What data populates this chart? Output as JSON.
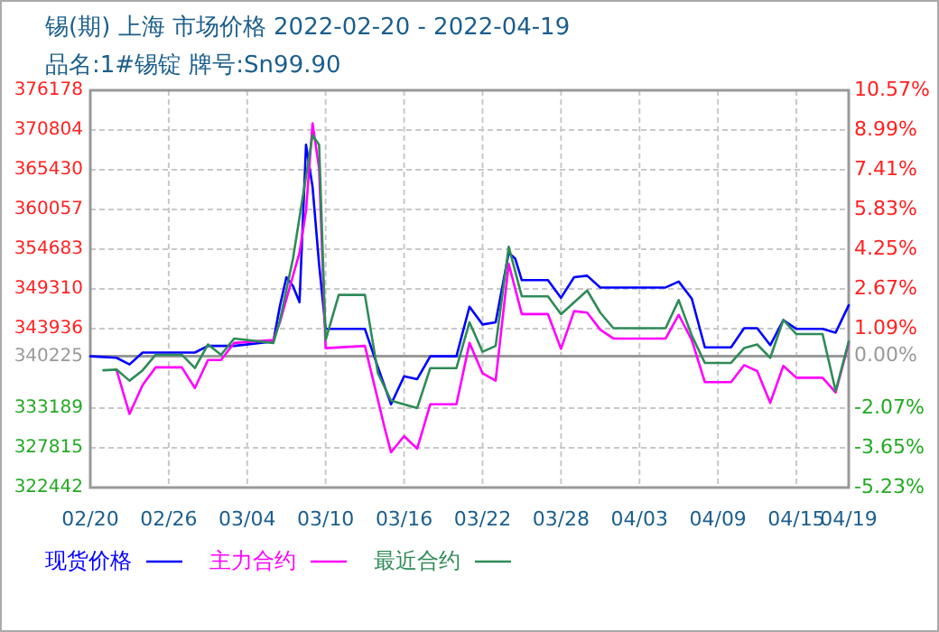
{
  "chart_data": {
    "type": "line",
    "title": "锡(期) 上海 市场价格 2022-02-20 - 2022-04-19",
    "subtitle": "品名:1#锡锭 牌号:Sn99.90",
    "xlim": [
      "2022-02-20",
      "2022-04-19"
    ],
    "xticks": [
      {
        "value": "2022-02-20",
        "label": "02/20"
      },
      {
        "value": "2022-02-26",
        "label": "02/26"
      },
      {
        "value": "2022-03-04",
        "label": "03/04"
      },
      {
        "value": "2022-03-10",
        "label": "03/10"
      },
      {
        "value": "2022-03-16",
        "label": "03/16"
      },
      {
        "value": "2022-03-22",
        "label": "03/22"
      },
      {
        "value": "2022-03-28",
        "label": "03/28"
      },
      {
        "value": "2022-04-03",
        "label": "04/03"
      },
      {
        "value": "2022-04-09",
        "label": "04/09"
      },
      {
        "value": "2022-04-15",
        "label": "04/15"
      },
      {
        "value": "2022-04-19",
        "label": "04/19"
      }
    ],
    "ylim": [
      322442,
      376178
    ],
    "yticks": [
      322442,
      327815,
      333189,
      340225,
      343936,
      349310,
      354683,
      360057,
      365430,
      370804,
      376178
    ],
    "y2lim": [
      -5.23,
      10.57
    ],
    "y2ticks": [
      {
        "value": -5.23,
        "label": "-5.23%"
      },
      {
        "value": -3.65,
        "label": "-3.65%"
      },
      {
        "value": -2.07,
        "label": "-2.07%"
      },
      {
        "value": 0,
        "label": "0.00%"
      },
      {
        "value": 1.09,
        "label": "1.09%"
      },
      {
        "value": 2.67,
        "label": "2.67%"
      },
      {
        "value": 4.25,
        "label": "4.25%"
      },
      {
        "value": 5.83,
        "label": "5.83%"
      },
      {
        "value": 7.41,
        "label": "7.41%"
      },
      {
        "value": 8.99,
        "label": "8.99%"
      },
      {
        "value": 10.57,
        "label": "10.57%"
      }
    ],
    "ref_lines": [
      {
        "axis": "y",
        "value": 340225,
        "color": "#999999"
      }
    ],
    "grid": true,
    "legend": "bottom",
    "line_style": "solid",
    "series": [
      {
        "name": "现货价格",
        "color": "#0000ff",
        "x": [
          "2022-02-20",
          "2022-02-22",
          "2022-02-23",
          "2022-02-24",
          "2022-02-28",
          "2022-03-01",
          "2022-03-03",
          "2022-03-06",
          "2022-03-06T12:00",
          "2022-03-07",
          "2022-03-07T12:00",
          "2022-03-08",
          "2022-03-08T12:00",
          "2022-03-09",
          "2022-03-09T12:00",
          "2022-03-10",
          "2022-03-13",
          "2022-03-14",
          "2022-03-15",
          "2022-03-16",
          "2022-03-17",
          "2022-03-18",
          "2022-03-20",
          "2022-03-21",
          "2022-03-22",
          "2022-03-23",
          "2022-03-24",
          "2022-03-24T12:00",
          "2022-03-25",
          "2022-03-27",
          "2022-03-28",
          "2022-03-29",
          "2022-03-30",
          "2022-03-31",
          "2022-04-05",
          "2022-04-06",
          "2022-04-07",
          "2022-04-08",
          "2022-04-10",
          "2022-04-11",
          "2022-04-12",
          "2022-04-13",
          "2022-04-14",
          "2022-04-15",
          "2022-04-17",
          "2022-04-18",
          "2022-04-19"
        ],
        "values": [
          340200,
          340000,
          339100,
          340700,
          340700,
          341600,
          341600,
          342200,
          347000,
          350900,
          349700,
          347500,
          368800,
          363100,
          352600,
          343900,
          343900,
          338700,
          333700,
          337500,
          337100,
          340200,
          340200,
          346900,
          344500,
          344800,
          354200,
          353400,
          350500,
          350500,
          348100,
          350900,
          351100,
          349500,
          349500,
          350300,
          348000,
          341400,
          341400,
          344000,
          344000,
          341700,
          345100,
          343900,
          343900,
          343400,
          347100
        ]
      },
      {
        "name": "主力合约",
        "color": "#ff00ff",
        "x": [
          "2022-02-22",
          "2022-02-23",
          "2022-02-24",
          "2022-02-25",
          "2022-02-27",
          "2022-02-28",
          "2022-03-01",
          "2022-03-02",
          "2022-03-03",
          "2022-03-06",
          "2022-03-06T12:00",
          "2022-03-08",
          "2022-03-08T12:00",
          "2022-03-09",
          "2022-03-09T12:00",
          "2022-03-10",
          "2022-03-13",
          "2022-03-14T12:00",
          "2022-03-15",
          "2022-03-16",
          "2022-03-17",
          "2022-03-18",
          "2022-03-20",
          "2022-03-21",
          "2022-03-22",
          "2022-03-23",
          "2022-03-24",
          "2022-03-25",
          "2022-03-27",
          "2022-03-28",
          "2022-03-29",
          "2022-03-30",
          "2022-03-31",
          "2022-04-01",
          "2022-04-05",
          "2022-04-06",
          "2022-04-07",
          "2022-04-08",
          "2022-04-10",
          "2022-04-11",
          "2022-04-12",
          "2022-04-13",
          "2022-04-14",
          "2022-04-15",
          "2022-04-17",
          "2022-04-18",
          "2022-04-19"
        ],
        "values": [
          338400,
          332400,
          336300,
          338700,
          338700,
          335900,
          339700,
          339700,
          342000,
          342400,
          344800,
          354200,
          359900,
          371700,
          365600,
          341300,
          341600,
          330600,
          327200,
          329400,
          327700,
          333700,
          333700,
          342000,
          337900,
          336900,
          352700,
          345900,
          345900,
          341200,
          346300,
          346100,
          343800,
          342600,
          342600,
          345800,
          342400,
          336700,
          336700,
          339000,
          338200,
          333900,
          338900,
          337300,
          337300,
          335300,
          342000
        ]
      },
      {
        "name": "最近合约",
        "color": "#2e8b57",
        "x": [
          "2022-02-21",
          "2022-02-22",
          "2022-02-23",
          "2022-02-24",
          "2022-02-25",
          "2022-02-27",
          "2022-02-28",
          "2022-03-01",
          "2022-03-02",
          "2022-03-03",
          "2022-03-06",
          "2022-03-06T12:00",
          "2022-03-07T12:00",
          "2022-03-09",
          "2022-03-09T12:00",
          "2022-03-10",
          "2022-03-11",
          "2022-03-13",
          "2022-03-14",
          "2022-03-15",
          "2022-03-17",
          "2022-03-18",
          "2022-03-20",
          "2022-03-21",
          "2022-03-22",
          "2022-03-23",
          "2022-03-24",
          "2022-03-25",
          "2022-03-27",
          "2022-03-28",
          "2022-03-30",
          "2022-03-31",
          "2022-04-01",
          "2022-04-05",
          "2022-04-06",
          "2022-04-07",
          "2022-04-08",
          "2022-04-10",
          "2022-04-11",
          "2022-04-12",
          "2022-04-13",
          "2022-04-14",
          "2022-04-15",
          "2022-04-17",
          "2022-04-18",
          "2022-04-19"
        ],
        "values": [
          338300,
          338400,
          336900,
          338300,
          340400,
          340400,
          338600,
          341800,
          340400,
          342600,
          342000,
          345000,
          353400,
          370100,
          368800,
          342400,
          348500,
          348500,
          337900,
          334200,
          333200,
          338600,
          338600,
          344800,
          340800,
          341600,
          355000,
          348300,
          348300,
          345900,
          349100,
          346100,
          344000,
          344000,
          347800,
          343000,
          339300,
          339300,
          341300,
          341800,
          340000,
          345100,
          343200,
          343200,
          335500,
          342200
        ]
      }
    ]
  }
}
